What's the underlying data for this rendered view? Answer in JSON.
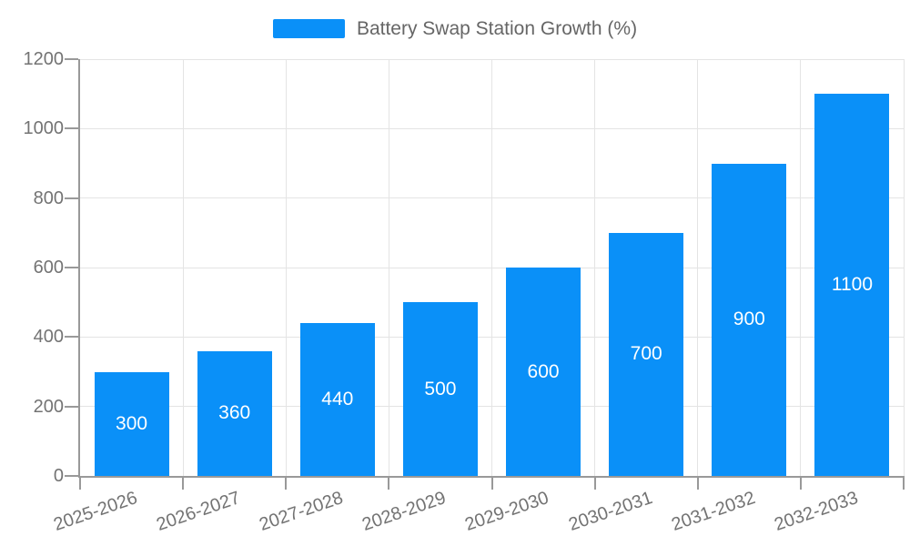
{
  "legend": {
    "label": "Battery Swap Station Growth (%)"
  },
  "chart_data": {
    "type": "bar",
    "title": "",
    "series_name": "Battery Swap Station Growth (%)",
    "categories": [
      "2025-2026",
      "2026-2027",
      "2027-2028",
      "2028-2029",
      "2029-2030",
      "2030-2031",
      "2031-2032",
      "2032-2033"
    ],
    "values": [
      300,
      360,
      440,
      500,
      600,
      700,
      900,
      1100
    ],
    "value_labels_shown": true,
    "xlabel": "",
    "ylabel": "",
    "ylim": [
      0,
      1200
    ],
    "y_ticks": [
      0,
      200,
      400,
      600,
      800,
      1000,
      1200
    ],
    "grid": true,
    "legend_position": "top-center",
    "colors": {
      "bar_fill": "#0A90F8",
      "bar_value_label": "#ffffff",
      "legend_text": "#666666",
      "axis_label": "#737373",
      "axis_line": "#999999",
      "gridline": "#E4E4E4"
    }
  }
}
